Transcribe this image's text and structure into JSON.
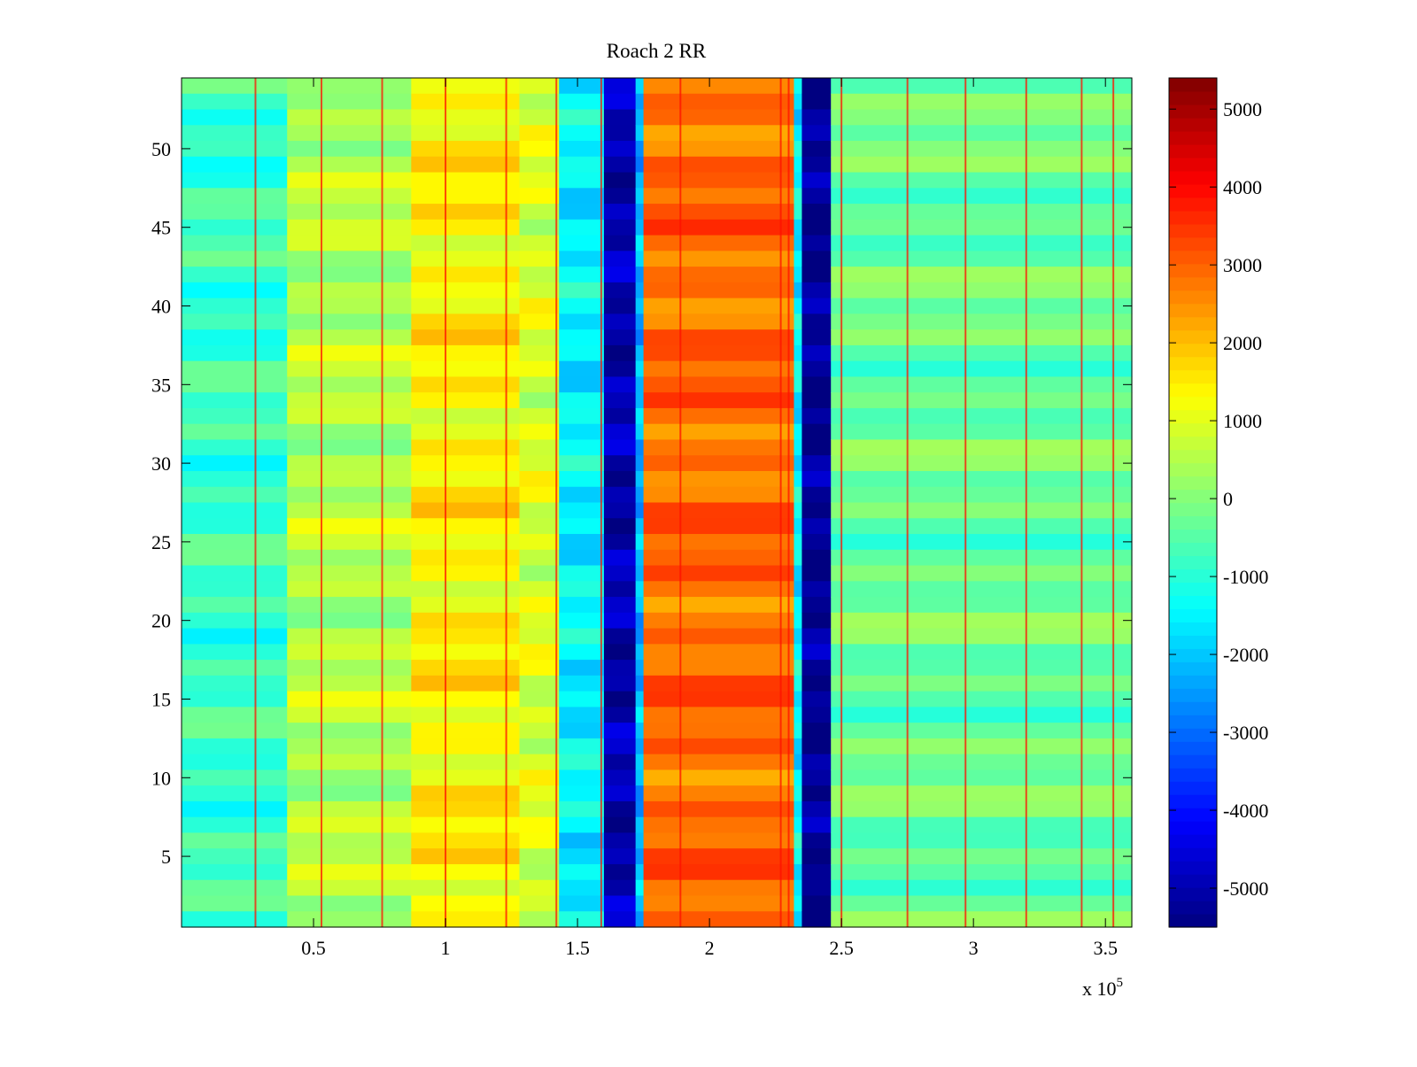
{
  "chart_data": {
    "type": "heatmap",
    "title": "Roach 2 RR",
    "xlabel": "",
    "ylabel": "",
    "x_multiplier_label": "x 10",
    "x_multiplier_exponent": "5",
    "xlim": [
      0,
      3.6
    ],
    "ylim": [
      0.5,
      54.5
    ],
    "x_ticks": [
      0.5,
      1,
      1.5,
      2,
      2.5,
      3,
      3.5
    ],
    "x_tick_labels": [
      "0.5",
      "1",
      "1.5",
      "2",
      "2.5",
      "3",
      "3.5"
    ],
    "y_ticks": [
      5,
      10,
      15,
      20,
      25,
      30,
      35,
      40,
      45,
      50
    ],
    "y_tick_labels": [
      "5",
      "10",
      "15",
      "20",
      "25",
      "30",
      "35",
      "40",
      "45",
      "50"
    ],
    "rows": 54,
    "colormap": "jet",
    "colorbar": {
      "clim": [
        -5500,
        5400
      ],
      "ticks": [
        5000,
        4000,
        3000,
        2000,
        1000,
        0,
        -1000,
        -2000,
        -3000,
        -4000,
        -5000
      ],
      "tick_labels": [
        "5000",
        "4000",
        "3000",
        "2000",
        "1000",
        "0",
        "-1000",
        "-2000",
        "-3000",
        "-4000",
        "-5000"
      ]
    },
    "column_bands": [
      {
        "x_start": 0.0,
        "x_end": 0.4,
        "value": -800
      },
      {
        "x_start": 0.4,
        "x_end": 0.87,
        "value": 500
      },
      {
        "x_start": 0.87,
        "x_end": 1.28,
        "value": 1400
      },
      {
        "x_start": 1.28,
        "x_end": 1.43,
        "value": 900
      },
      {
        "x_start": 1.43,
        "x_end": 1.6,
        "value": -1500
      },
      {
        "x_start": 1.6,
        "x_end": 1.72,
        "value": -5000
      },
      {
        "x_start": 1.72,
        "x_end": 1.75,
        "value": -2200
      },
      {
        "x_start": 1.75,
        "x_end": 2.32,
        "value": 2900
      },
      {
        "x_start": 2.32,
        "x_end": 2.35,
        "value": -1500
      },
      {
        "x_start": 2.35,
        "x_end": 2.46,
        "value": -5300
      },
      {
        "x_start": 2.46,
        "x_end": 3.6,
        "value": -300
      }
    ],
    "spike_columns": [
      0.28,
      0.53,
      0.76,
      1.0,
      1.23,
      1.42,
      1.59,
      1.89,
      2.27,
      2.3,
      2.5,
      2.75,
      2.97,
      3.2,
      3.41,
      3.53
    ]
  }
}
